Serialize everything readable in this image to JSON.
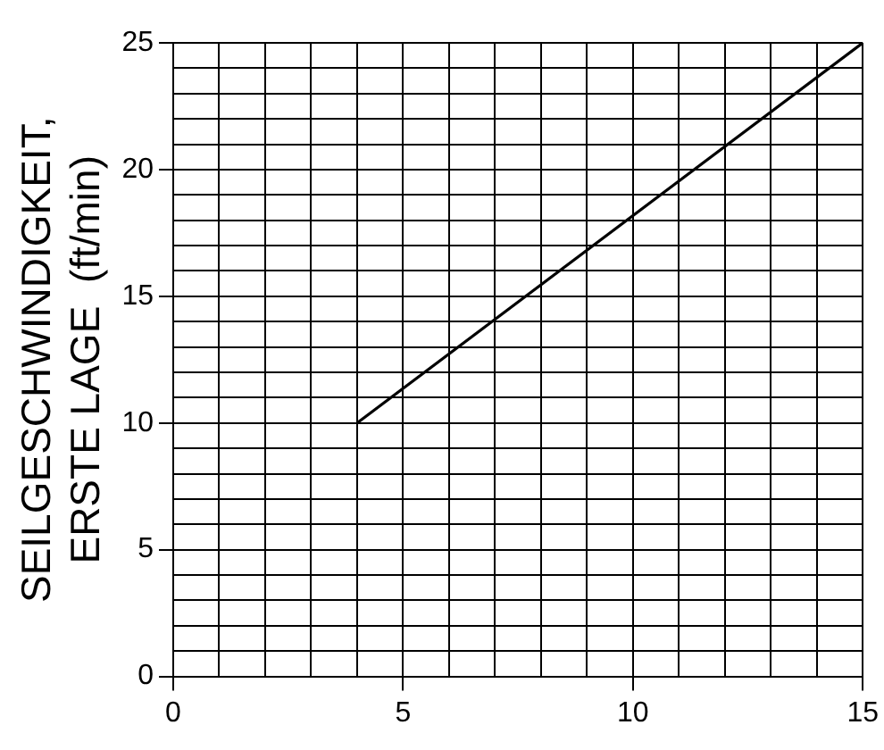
{
  "chart_data": {
    "type": "line",
    "ylabel": "SEILGESCHWINDIGKEIT,\nERSTE LAGE  (ft/min)",
    "x": [
      4,
      15
    ],
    "series": [
      {
        "color": "#000000",
        "values": [
          10,
          25
        ]
      }
    ],
    "xlim": [
      0,
      15
    ],
    "xticks": [
      0,
      {
        "value": 1,
        "label": null
      },
      {
        "value": 2,
        "label": null
      },
      {
        "value": 3,
        "label": null
      },
      {
        "value": 4,
        "label": null
      },
      5,
      {
        "value": 6,
        "label": null
      },
      {
        "value": 7,
        "label": null
      },
      {
        "value": 8,
        "label": null
      },
      {
        "value": 9,
        "label": null
      },
      10,
      {
        "value": 11,
        "label": null
      },
      {
        "value": 12,
        "label": null
      },
      {
        "value": 13,
        "label": null
      },
      {
        "value": 14,
        "label": null
      },
      15
    ],
    "ylim": [
      0,
      25
    ],
    "yticks": [
      0,
      {
        "value": 1,
        "label": null
      },
      {
        "value": 2,
        "label": null
      },
      {
        "value": 3,
        "label": null
      },
      {
        "value": 4,
        "label": null
      },
      5,
      {
        "value": 6,
        "label": null
      },
      {
        "value": 7,
        "label": null
      },
      {
        "value": 8,
        "label": null
      },
      {
        "value": 9,
        "label": null
      },
      10,
      {
        "value": 11,
        "label": null
      },
      {
        "value": 12,
        "label": null
      },
      {
        "value": 13,
        "label": null
      },
      {
        "value": 14,
        "label": null
      },
      15,
      {
        "value": 16,
        "label": null
      },
      {
        "value": 17,
        "label": null
      },
      {
        "value": 18,
        "label": null
      },
      {
        "value": 19,
        "label": null
      },
      20,
      {
        "value": 21,
        "label": null
      },
      {
        "value": 22,
        "label": null
      },
      {
        "value": 23,
        "label": null
      },
      {
        "value": 24,
        "label": null
      },
      25
    ],
    "grid": true,
    "marker": "none",
    "line_style": "solid"
  }
}
